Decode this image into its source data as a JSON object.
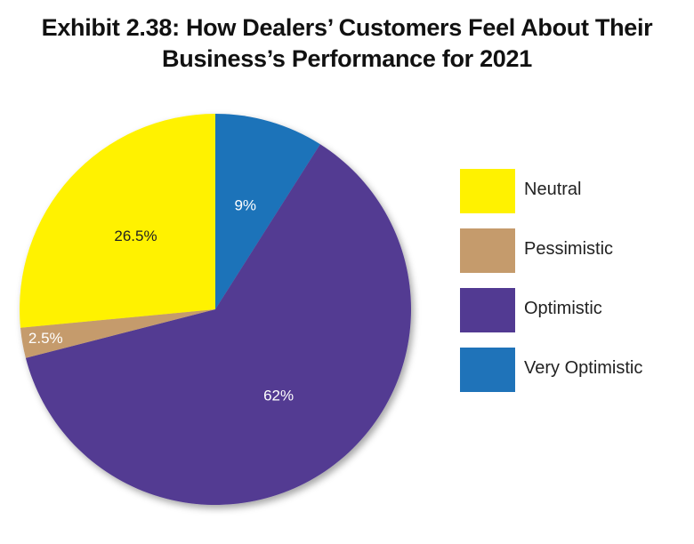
{
  "chart_data": {
    "type": "pie",
    "title_line1": "Exhibit 2.38: How Dealers’ Customers Feel About Their",
    "title_line2": "Business’s Performance for 2021",
    "slices": [
      {
        "label": "Very Optimistic",
        "value": 9,
        "value_label": "9%",
        "color": "#1f73b9",
        "label_color": "#ffffff"
      },
      {
        "label": "Optimistic",
        "value": 62,
        "value_label": "62%",
        "color": "#523a92",
        "label_color": "#ffffff"
      },
      {
        "label": "Pessimistic",
        "value": 2.5,
        "value_label": "2.5%",
        "color": "#c59b6c",
        "label_color": "#ffffff"
      },
      {
        "label": "Neutral",
        "value": 26.5,
        "value_label": "26.5%",
        "color": "#fff200",
        "label_color": "#222222"
      }
    ],
    "legend": [
      {
        "label": "Neutral",
        "color": "#fff200"
      },
      {
        "label": "Pessimistic",
        "color": "#c59b6c"
      },
      {
        "label": "Optimistic",
        "color": "#523a92"
      },
      {
        "label": "Very Optimistic",
        "color": "#1f73b9"
      }
    ],
    "legend_position": "right",
    "start_angle_deg": 0,
    "direction": "clockwise"
  }
}
